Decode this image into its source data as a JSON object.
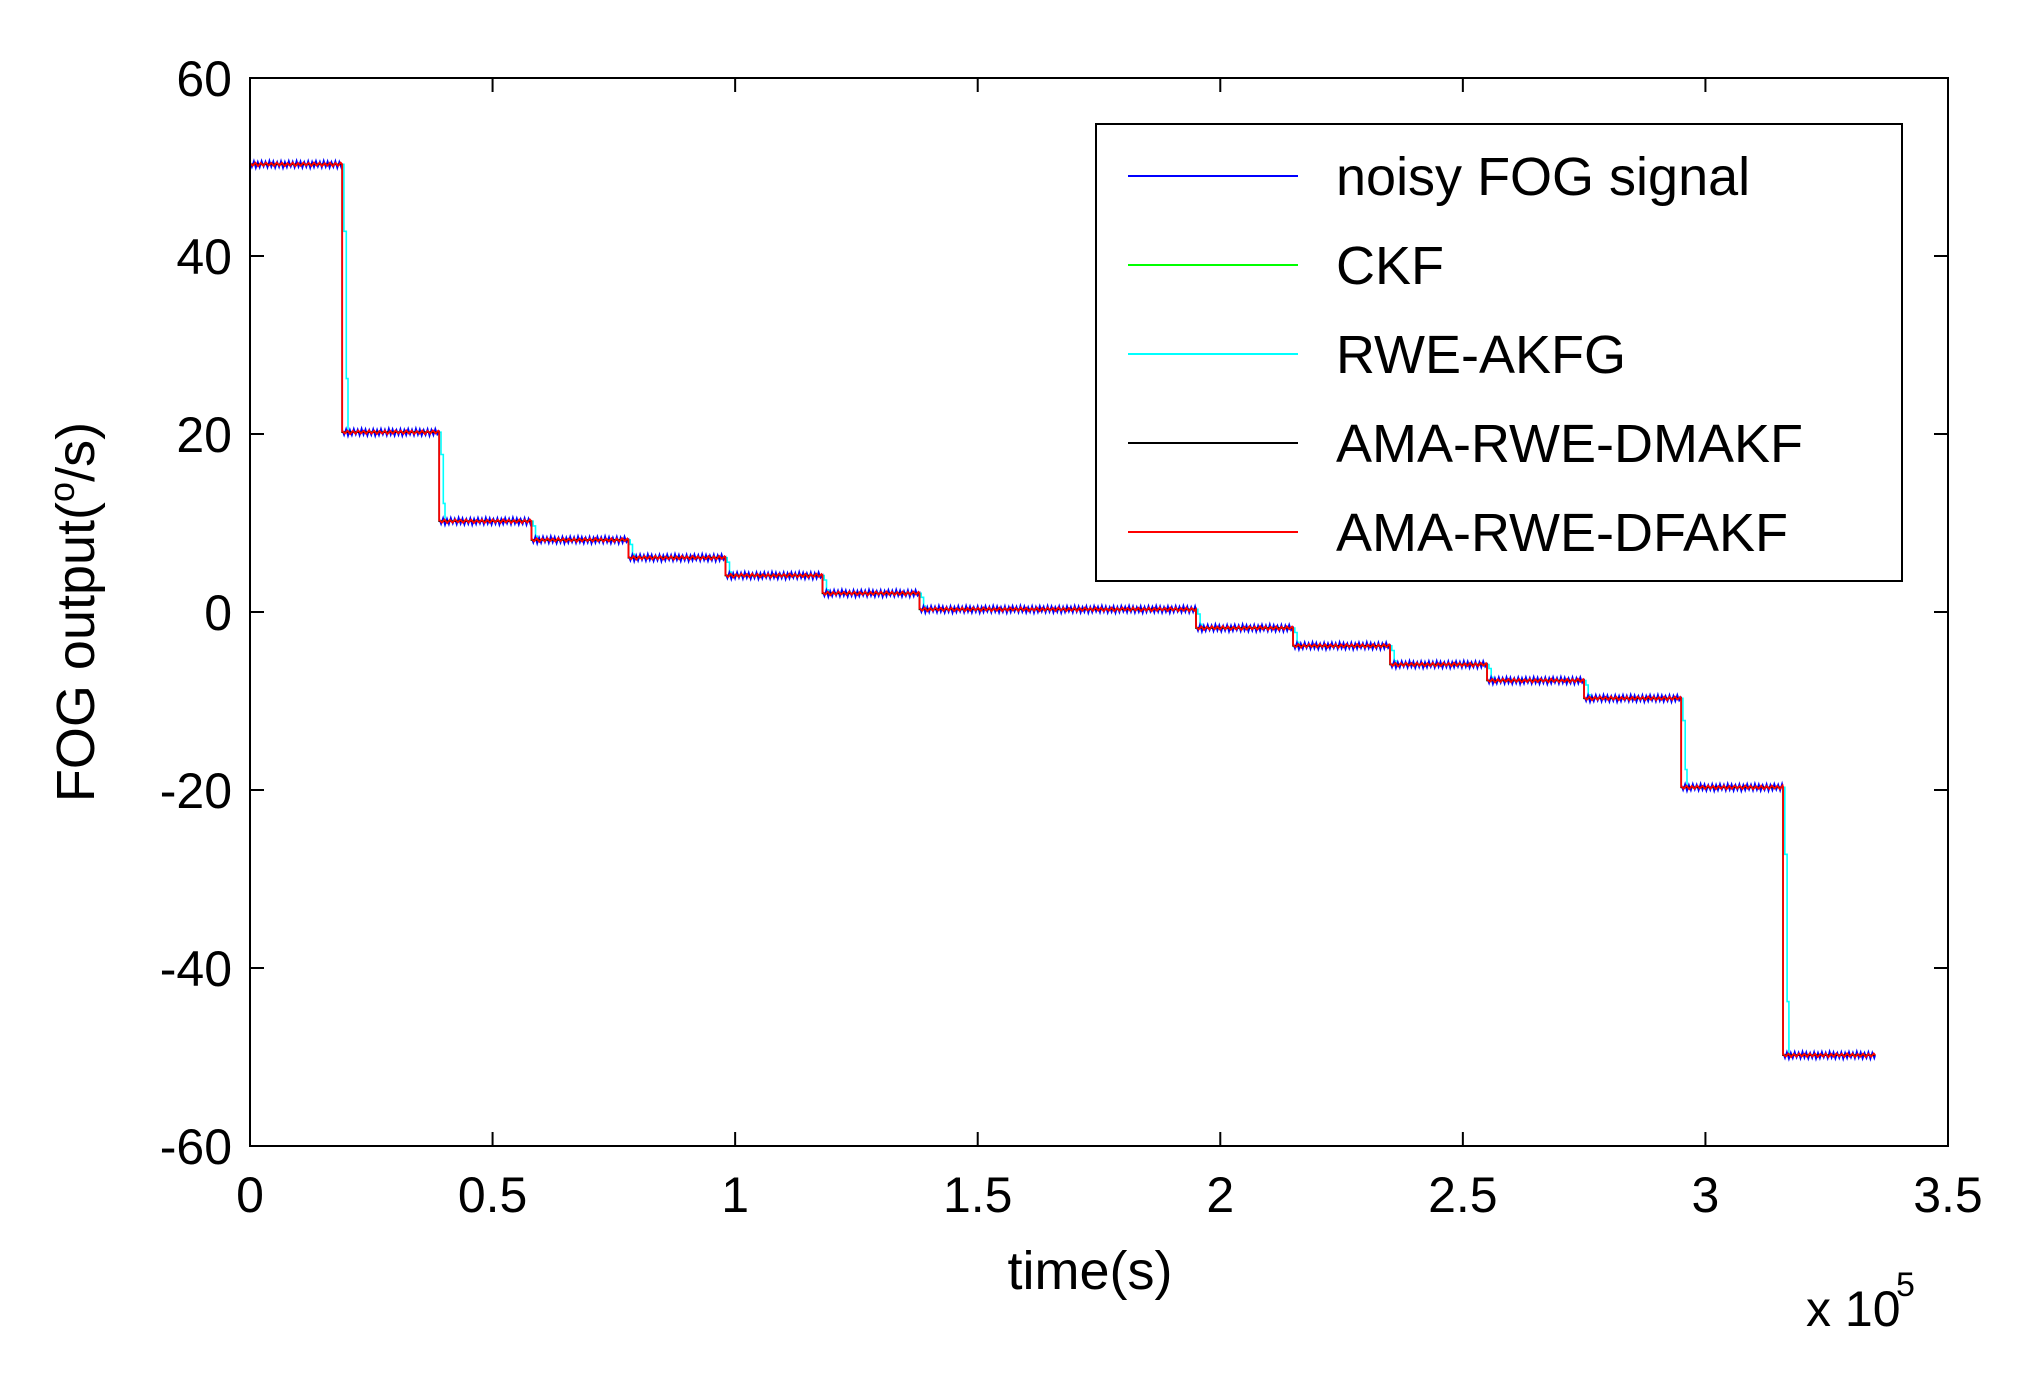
{
  "chart_data": {
    "type": "line",
    "title": "",
    "xlabel": "time(s)",
    "ylabel_main": "FOG output(",
    "ylabel_sup": "o",
    "ylabel_tail": "/s)",
    "x_multiplier_label": "x 10",
    "x_multiplier_exponent": "5",
    "xlim": [
      0,
      3.5
    ],
    "ylim": [
      -60,
      60
    ],
    "xticks": [
      0,
      0.5,
      1,
      1.5,
      2,
      2.5,
      3,
      3.5
    ],
    "xtick_labels": [
      "0",
      "0.5",
      "1",
      "1.5",
      "2",
      "2.5",
      "3",
      "3.5"
    ],
    "yticks": [
      60,
      40,
      20,
      0,
      -20,
      -40,
      -60
    ],
    "ytick_labels": [
      "60",
      "40",
      "20",
      "0",
      "-20",
      "-40",
      "-60"
    ],
    "legend_position": "top-right",
    "step_times": [
      0.19,
      0.39,
      0.58,
      0.78,
      0.98,
      1.18,
      1.38,
      1.95,
      2.15,
      2.35,
      2.55,
      2.75,
      2.95,
      3.16
    ],
    "levels": [
      50.3,
      20.2,
      10.2,
      8.1,
      6.1,
      4.1,
      2.1,
      0.3,
      -1.8,
      -3.8,
      -5.9,
      -7.7,
      -9.7,
      -19.7,
      -49.8
    ],
    "x_end": 3.35,
    "series": [
      {
        "name": "noisy FOG signal",
        "color": "#0000ff",
        "kind": "noisy"
      },
      {
        "name": "CKF",
        "color": "#00ff00",
        "kind": "ckf"
      },
      {
        "name": "RWE-AKFG",
        "color": "#00ffff",
        "kind": "lagged"
      },
      {
        "name": "AMA-RWE-DMAKF",
        "color": "#000000",
        "kind": "dmakf"
      },
      {
        "name": "AMA-RWE-DFAKF",
        "color": "#ff0000",
        "kind": "dfakf"
      }
    ]
  }
}
